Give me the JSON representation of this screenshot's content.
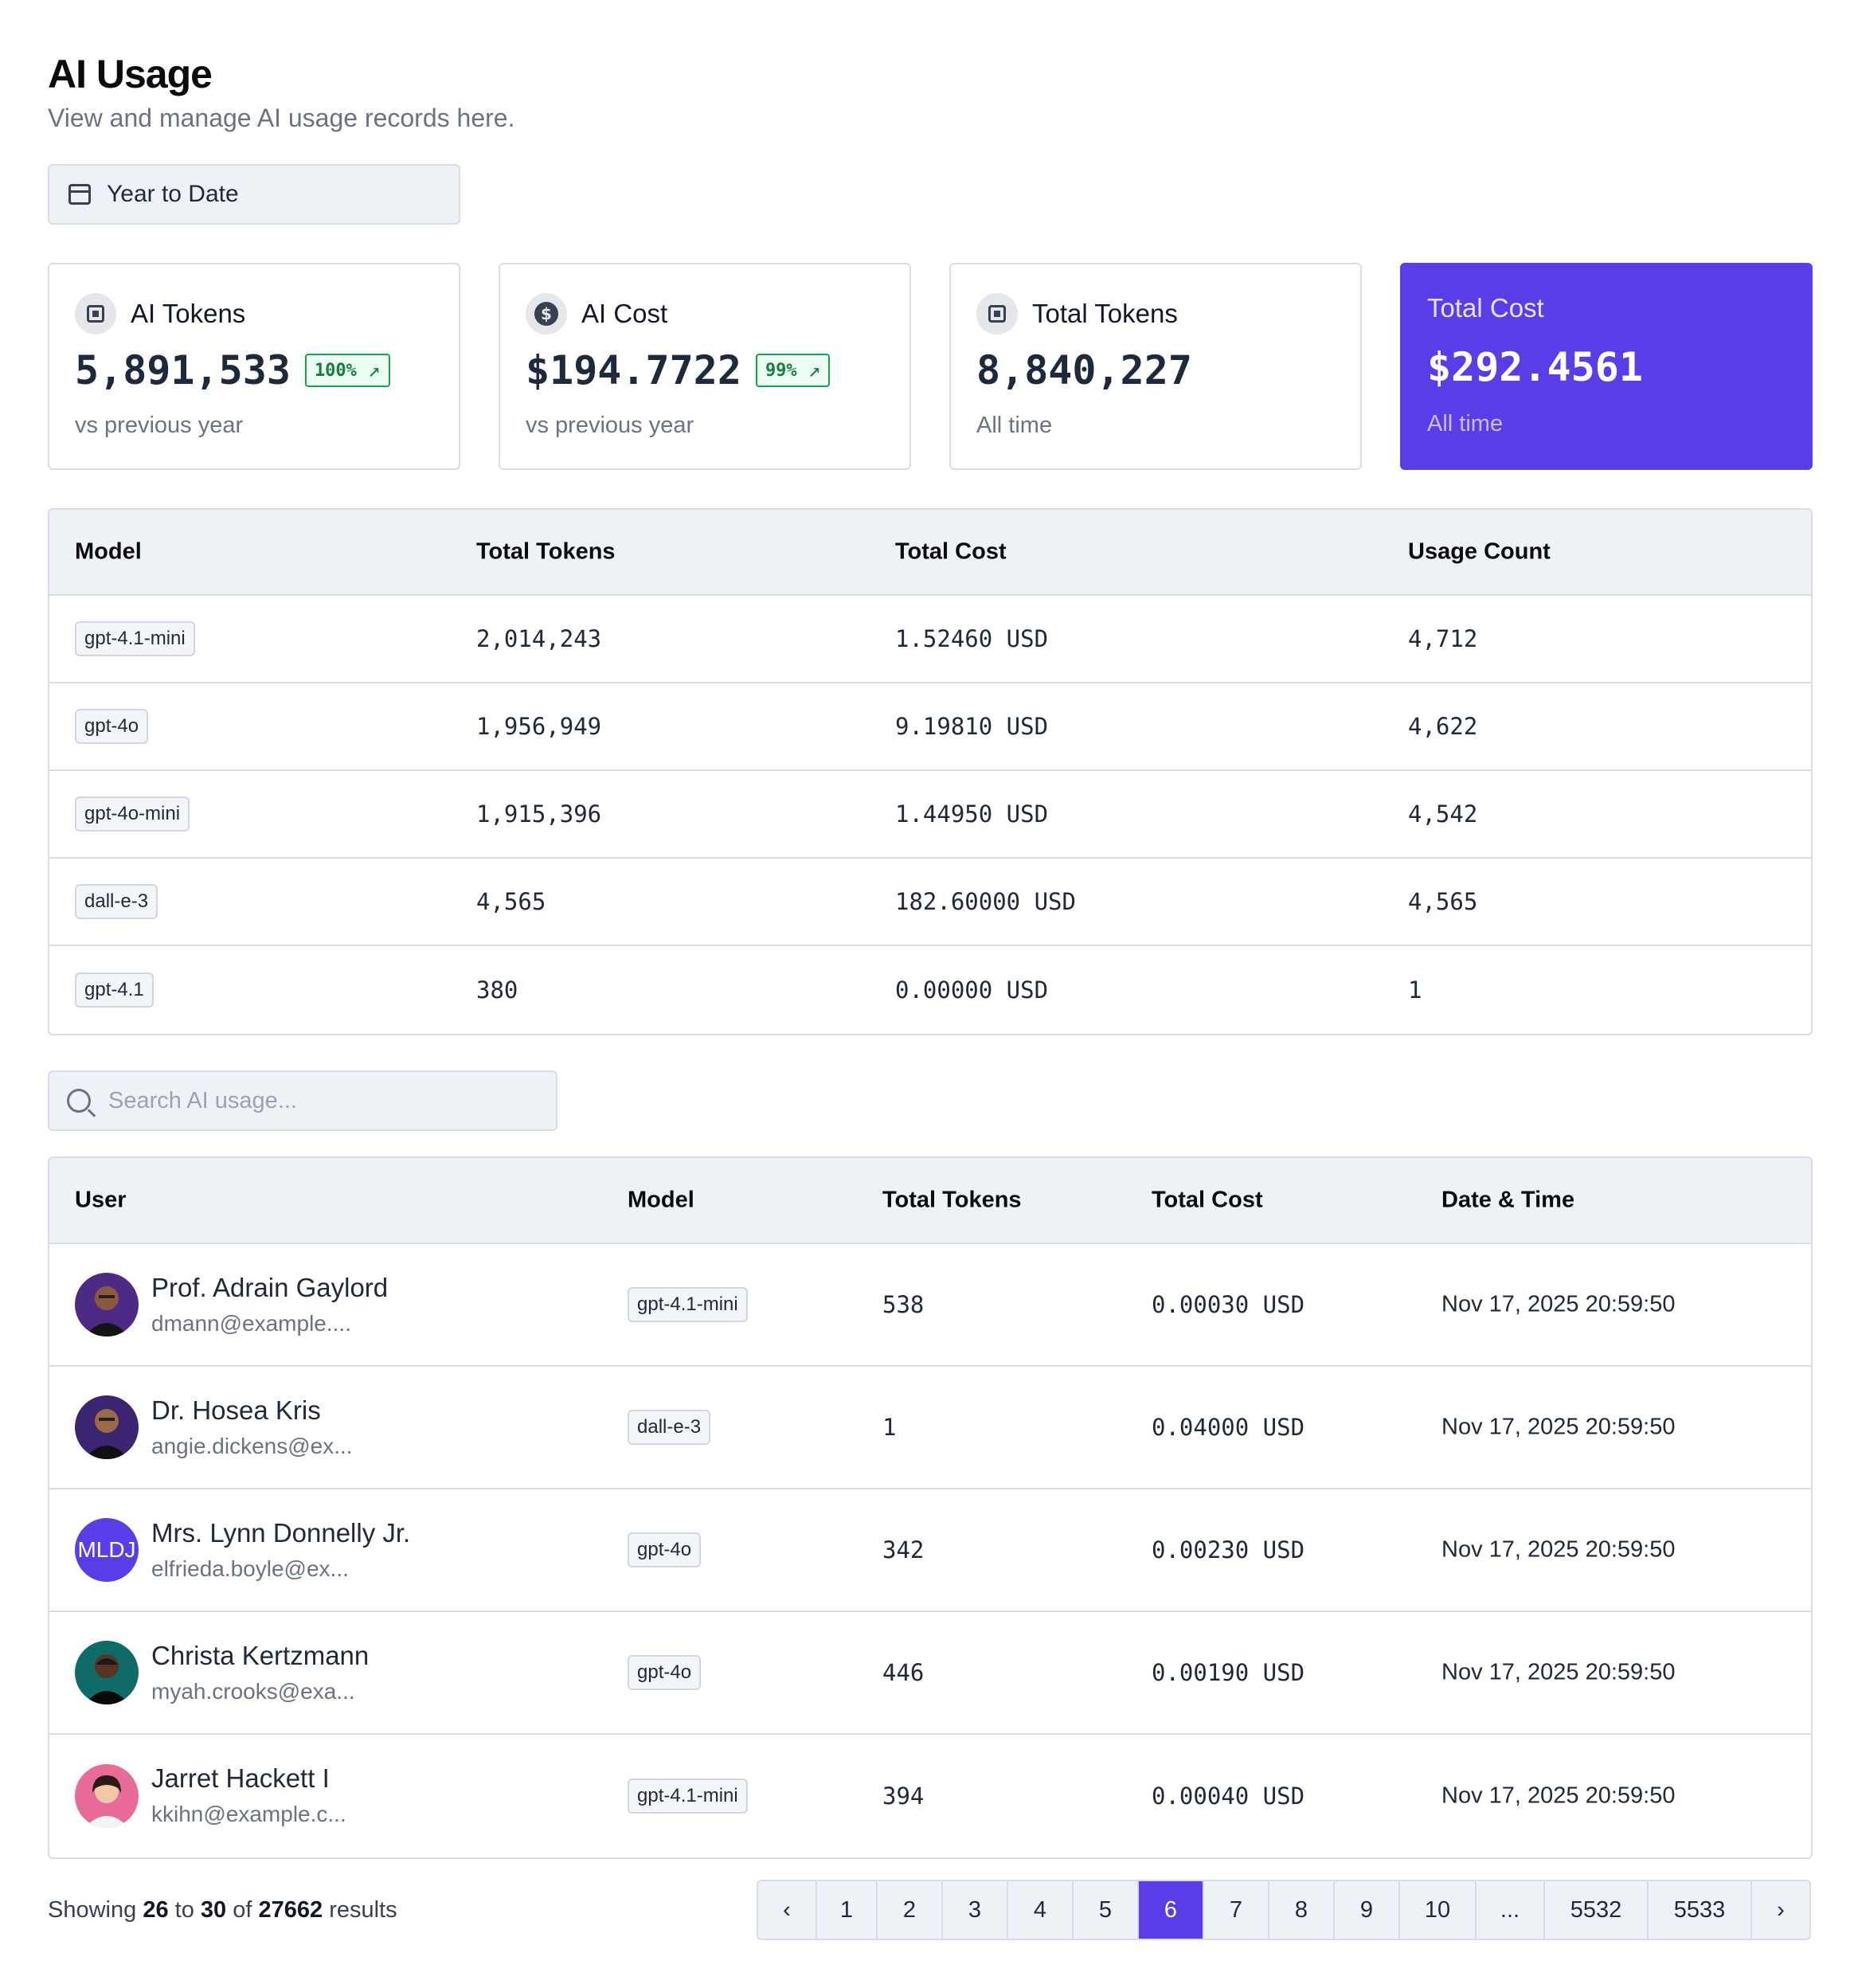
{
  "header": {
    "title": "AI Usage",
    "subtitle": "View and manage AI usage records here.",
    "date_range": "Year to Date"
  },
  "cards": [
    {
      "label": "AI Tokens",
      "value": "5,891,533",
      "badge": "100%",
      "footnote": "vs previous year",
      "icon": "chip-icon"
    },
    {
      "label": "AI Cost",
      "value": "$194.7722",
      "badge": "99%",
      "footnote": "vs previous year",
      "icon": "dollar-icon"
    },
    {
      "label": "Total Tokens",
      "value": "8,840,227",
      "footnote": "All time",
      "icon": "chip-icon"
    },
    {
      "label": "Total Cost",
      "value": "$292.4561",
      "footnote": "All time"
    }
  ],
  "model_table": {
    "headers": [
      "Model",
      "Total Tokens",
      "Total Cost",
      "Usage Count"
    ],
    "rows": [
      {
        "model": "gpt-4.1-mini",
        "tokens": "2,014,243",
        "cost": "1.52460 USD",
        "count": "4,712"
      },
      {
        "model": "gpt-4o",
        "tokens": "1,956,949",
        "cost": "9.19810 USD",
        "count": "4,622"
      },
      {
        "model": "gpt-4o-mini",
        "tokens": "1,915,396",
        "cost": "1.44950 USD",
        "count": "4,542"
      },
      {
        "model": "dall-e-3",
        "tokens": "4,565",
        "cost": "182.60000 USD",
        "count": "4,565"
      },
      {
        "model": "gpt-4.1",
        "tokens": "380",
        "cost": "0.00000 USD",
        "count": "1"
      }
    ]
  },
  "search": {
    "placeholder": "Search AI usage..."
  },
  "usage_table": {
    "headers": [
      "User",
      "Model",
      "Total Tokens",
      "Total Cost",
      "Date & Time"
    ],
    "rows": [
      {
        "name": "Prof. Adrain Gaylord",
        "email": "dmann@example....",
        "model": "gpt-4.1-mini",
        "tokens": "538",
        "cost": "0.00030 USD",
        "datetime": "Nov 17, 2025 20:59:50"
      },
      {
        "name": "Dr. Hosea Kris",
        "email": "angie.dickens@ex...",
        "model": "dall-e-3",
        "tokens": "1",
        "cost": "0.04000 USD",
        "datetime": "Nov 17, 2025 20:59:50"
      },
      {
        "name": "Mrs. Lynn Donnelly Jr.",
        "email": "elfrieda.boyle@ex...",
        "model": "gpt-4o",
        "tokens": "342",
        "cost": "0.00230 USD",
        "datetime": "Nov 17, 2025 20:59:50",
        "initials": "MLDJ"
      },
      {
        "name": "Christa Kertzmann",
        "email": "myah.crooks@exa...",
        "model": "gpt-4o",
        "tokens": "446",
        "cost": "0.00190 USD",
        "datetime": "Nov 17, 2025 20:59:50"
      },
      {
        "name": "Jarret Hackett I",
        "email": "kkihn@example.c...",
        "model": "gpt-4.1-mini",
        "tokens": "394",
        "cost": "0.00040 USD",
        "datetime": "Nov 17, 2025 20:59:50"
      }
    ]
  },
  "footer": {
    "prefix": "Showing",
    "from": "26",
    "to_word": "to",
    "to": "30",
    "of_word": "of",
    "total": "27662",
    "suffix": "results"
  },
  "pagination": {
    "prev": "‹",
    "next": "›",
    "pages": [
      "1",
      "2",
      "3",
      "4",
      "5",
      "6",
      "7",
      "8",
      "9",
      "10",
      "...",
      "5532",
      "5533"
    ],
    "active": "6"
  },
  "colors": {
    "accent": "#5a3de6",
    "success": "#16a34a",
    "border": "#d6dde7",
    "header_bg": "#eef2f7"
  }
}
